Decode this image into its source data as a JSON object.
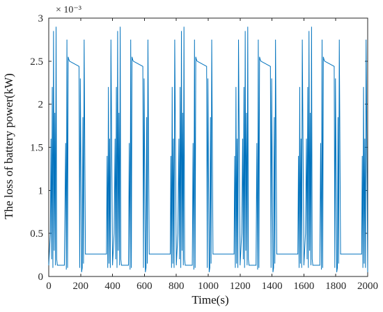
{
  "chart_data": {
    "type": "line",
    "title": "",
    "xlabel": "Time(s)",
    "ylabel": "The loss of battery power(kW)",
    "y_exponent_label": "× 10⁻³",
    "xlim": [
      0,
      2000
    ],
    "ylim": [
      0,
      3
    ],
    "x_ticks": [
      0,
      200,
      400,
      600,
      800,
      1000,
      1200,
      1400,
      1600,
      1800,
      2000
    ],
    "y_ticks": [
      0,
      0.5,
      1,
      1.5,
      2,
      2.5,
      3
    ],
    "x_tick_labels": [
      "0",
      "200",
      "400",
      "600",
      "800",
      "1000",
      "1200",
      "1400",
      "1600",
      "1800",
      "2000"
    ],
    "y_tick_labels": [
      "0",
      "0.5",
      "1",
      "1.5",
      "2",
      "2.5",
      "3"
    ],
    "grid": false,
    "legend": "none",
    "color": "#0072BD",
    "series": [
      {
        "values_note": "power loss values in units of 1e-3 kW",
        "x": [
          0,
          10,
          14,
          18,
          22,
          26,
          30,
          34,
          38,
          42,
          46,
          50,
          54,
          58,
          62,
          66,
          70,
          74,
          78,
          82,
          86,
          90,
          94,
          98,
          106,
          110,
          114,
          118,
          122,
          126,
          130,
          150,
          170,
          190,
          194,
          198,
          206,
          210,
          214,
          218,
          222,
          230,
          240,
          250,
          260,
          262,
          266,
          270,
          274,
          290,
          310,
          330,
          350,
          362,
          366,
          370,
          374,
          378,
          382,
          386,
          390,
          400,
          410,
          416,
          420,
          424,
          428,
          432,
          436,
          440,
          444,
          448,
          452,
          456,
          460,
          464,
          468,
          472,
          476,
          480,
          490,
          500,
          505,
          510,
          514,
          518,
          522,
          526,
          530,
          550,
          570,
          590,
          594,
          598,
          606,
          610,
          614,
          618,
          622,
          630,
          640,
          650,
          660,
          662,
          666,
          670,
          674,
          690,
          710,
          730,
          750,
          762,
          766,
          770,
          774,
          778,
          782,
          786,
          790,
          800,
          810,
          816,
          820,
          824,
          828,
          832,
          836,
          840,
          844,
          848,
          852,
          856,
          860,
          864,
          868,
          872,
          876,
          880,
          890,
          900,
          905,
          910,
          914,
          918,
          922,
          926,
          930,
          950,
          970,
          990,
          994,
          998,
          1006,
          1010,
          1014,
          1018,
          1022,
          1030,
          1040,
          1050,
          1060,
          1062,
          1066,
          1070,
          1074,
          1090,
          1110,
          1130,
          1150,
          1162,
          1166,
          1170,
          1174,
          1178,
          1182,
          1186,
          1190,
          1200,
          1210,
          1216,
          1220,
          1224,
          1228,
          1232,
          1236,
          1240,
          1244,
          1248,
          1252,
          1256,
          1260,
          1264,
          1268,
          1272,
          1276,
          1280,
          1290,
          1300,
          1305,
          1310,
          1314,
          1318,
          1322,
          1326,
          1330,
          1350,
          1370,
          1390,
          1394,
          1398,
          1406,
          1410,
          1414,
          1418,
          1422,
          1430,
          1440,
          1450,
          1460,
          1462,
          1466,
          1470,
          1474,
          1490,
          1510,
          1530,
          1550,
          1562,
          1566,
          1570,
          1574,
          1578,
          1582,
          1586,
          1590,
          1600,
          1610,
          1616,
          1620,
          1624,
          1628,
          1632,
          1636,
          1640,
          1644,
          1648,
          1652,
          1656,
          1660,
          1664,
          1668,
          1672,
          1676,
          1680,
          1690,
          1700,
          1705,
          1710,
          1714,
          1718,
          1722,
          1726,
          1730,
          1750,
          1770,
          1790,
          1794,
          1798,
          1806,
          1810,
          1814,
          1818,
          1822,
          1830,
          1840,
          1850,
          1860,
          1862,
          1866,
          1870,
          1874,
          1890,
          1910,
          1930,
          1950,
          1962,
          1966,
          1970,
          1974,
          1978,
          1982,
          1986,
          1990,
          2000
        ],
        "y": [
          0.13,
          0.5,
          1.6,
          0.2,
          2.2,
          0.1,
          2.85,
          0.3,
          1.9,
          0.13,
          2.9,
          0.2,
          0.13,
          0.13,
          0.13,
          0.13,
          0.13,
          0.13,
          0.13,
          0.13,
          0.13,
          0.13,
          0.13,
          0.13,
          1.55,
          0.08,
          2.75,
          0.1,
          2.55,
          2.52,
          2.5,
          2.48,
          2.46,
          2.44,
          0.1,
          2.3,
          0.05,
          0.1,
          1.85,
          0.15,
          2.75,
          0.26,
          0.26,
          0.26,
          0.26,
          0.26,
          0.26,
          0.26,
          0.26,
          0.26,
          0.26,
          0.26,
          0.26,
          0.26,
          1.4,
          0.1,
          2.2,
          0.15,
          1.6,
          0.1,
          2.75,
          0.13,
          0.5,
          1.6,
          0.2,
          2.2,
          0.1,
          2.85,
          0.3,
          1.9,
          0.13,
          2.9,
          0.2,
          0.13,
          0.13,
          0.13,
          0.13,
          0.13,
          0.13,
          0.13,
          0.13,
          0.13,
          1.55,
          0.08,
          2.75,
          0.1,
          2.55,
          2.52,
          2.5,
          2.48,
          2.46,
          2.44,
          0.1,
          2.3,
          0.05,
          0.1,
          1.85,
          0.15,
          2.75,
          0.26,
          0.26,
          0.26,
          0.26,
          0.26,
          0.26,
          0.26,
          0.26,
          0.26,
          0.26,
          0.26,
          0.26,
          0.26,
          1.4,
          0.1,
          2.2,
          0.15,
          1.6,
          0.1,
          2.75,
          0.13,
          0.5,
          1.6,
          0.2,
          2.2,
          0.1,
          2.85,
          0.3,
          1.9,
          0.13,
          2.9,
          0.2,
          0.13,
          0.13,
          0.13,
          0.13,
          0.13,
          0.13,
          0.13,
          0.13,
          0.13,
          1.55,
          0.08,
          2.75,
          0.1,
          2.55,
          2.52,
          2.5,
          2.48,
          2.46,
          2.44,
          0.1,
          2.3,
          0.05,
          0.1,
          1.85,
          0.15,
          2.75,
          0.26,
          0.26,
          0.26,
          0.26,
          0.26,
          0.26,
          0.26,
          0.26,
          0.26,
          0.26,
          0.26,
          0.26,
          0.26,
          1.4,
          0.1,
          2.2,
          0.15,
          1.6,
          0.1,
          2.75,
          0.13,
          0.5,
          1.6,
          0.2,
          2.2,
          0.1,
          2.85,
          0.3,
          1.9,
          0.13,
          2.9,
          0.2,
          0.13,
          0.13,
          0.13,
          0.13,
          0.13,
          0.13,
          0.13,
          0.13,
          0.13,
          1.55,
          0.08,
          2.75,
          0.1,
          2.55,
          2.52,
          2.5,
          2.48,
          2.46,
          2.44,
          0.1,
          2.3,
          0.05,
          0.1,
          1.85,
          0.15,
          2.75,
          0.26,
          0.26,
          0.26,
          0.26,
          0.26,
          0.26,
          0.26,
          0.26,
          0.26,
          0.26,
          0.26,
          0.26,
          0.26,
          1.4,
          0.1,
          2.2,
          0.15,
          1.6,
          0.1,
          2.75,
          0.13,
          0.5,
          1.6,
          0.2,
          2.2,
          0.1,
          2.85,
          0.3,
          1.9,
          0.13,
          2.9,
          0.2,
          0.13,
          0.13,
          0.13,
          0.13,
          0.13,
          0.13,
          0.13,
          0.13,
          0.13,
          1.55,
          0.08,
          2.75,
          0.1,
          2.55,
          2.52,
          2.5,
          2.48,
          2.46,
          2.44,
          0.1,
          2.3,
          0.05,
          0.1,
          1.85,
          0.15,
          2.75,
          0.26,
          0.26,
          0.26,
          0.26,
          0.26,
          0.26,
          0.26,
          0.26,
          0.26,
          0.26,
          0.26,
          0.26,
          0.26,
          1.4,
          0.1,
          2.2,
          0.15,
          1.6,
          0.1,
          2.75,
          0.05
        ]
      }
    ]
  }
}
